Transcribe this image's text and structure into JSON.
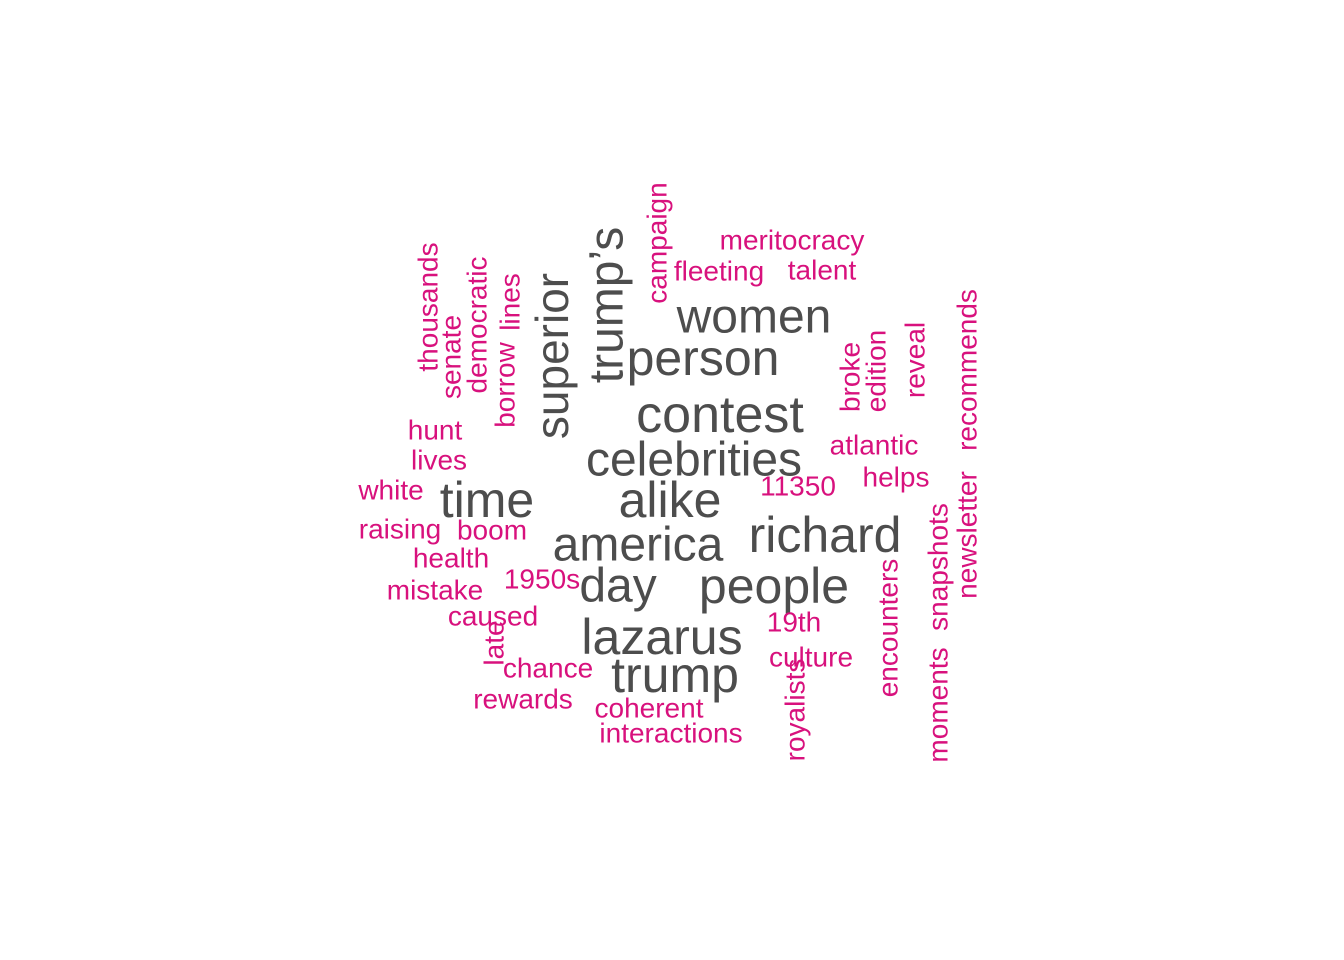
{
  "colors": {
    "primary": "#4d4d4d",
    "secondary": "#d8117d",
    "background": "#ffffff"
  },
  "words": [
    {
      "text": "trump’s",
      "group": "primary",
      "rotated": true
    },
    {
      "text": "superior",
      "group": "primary",
      "rotated": true
    },
    {
      "text": "women",
      "group": "primary",
      "rotated": false
    },
    {
      "text": "person",
      "group": "primary",
      "rotated": false
    },
    {
      "text": "contest",
      "group": "primary",
      "rotated": false
    },
    {
      "text": "celebrities",
      "group": "primary",
      "rotated": false
    },
    {
      "text": "time",
      "group": "primary",
      "rotated": false
    },
    {
      "text": "alike",
      "group": "primary",
      "rotated": false
    },
    {
      "text": "america",
      "group": "primary",
      "rotated": false
    },
    {
      "text": "richard",
      "group": "primary",
      "rotated": false
    },
    {
      "text": "day",
      "group": "primary",
      "rotated": false
    },
    {
      "text": "people",
      "group": "primary",
      "rotated": false
    },
    {
      "text": "lazarus",
      "group": "primary",
      "rotated": false
    },
    {
      "text": "trump",
      "group": "primary",
      "rotated": false
    },
    {
      "text": "campaign",
      "group": "secondary",
      "rotated": true
    },
    {
      "text": "meritocracy",
      "group": "secondary",
      "rotated": false
    },
    {
      "text": "fleeting",
      "group": "secondary",
      "rotated": false
    },
    {
      "text": "talent",
      "group": "secondary",
      "rotated": false
    },
    {
      "text": "thousands",
      "group": "secondary",
      "rotated": true
    },
    {
      "text": "senate",
      "group": "secondary",
      "rotated": true
    },
    {
      "text": "democratic",
      "group": "secondary",
      "rotated": true
    },
    {
      "text": "borrow",
      "group": "secondary",
      "rotated": true
    },
    {
      "text": "lines",
      "group": "secondary",
      "rotated": true
    },
    {
      "text": "hunt",
      "group": "secondary",
      "rotated": false
    },
    {
      "text": "lives",
      "group": "secondary",
      "rotated": false
    },
    {
      "text": "white",
      "group": "secondary",
      "rotated": false
    },
    {
      "text": "raising",
      "group": "secondary",
      "rotated": false
    },
    {
      "text": "boom",
      "group": "secondary",
      "rotated": false
    },
    {
      "text": "health",
      "group": "secondary",
      "rotated": false
    },
    {
      "text": "mistake",
      "group": "secondary",
      "rotated": false
    },
    {
      "text": "1950s",
      "group": "secondary",
      "rotated": false
    },
    {
      "text": "caused",
      "group": "secondary",
      "rotated": false
    },
    {
      "text": "late",
      "group": "secondary",
      "rotated": true
    },
    {
      "text": "chance",
      "group": "secondary",
      "rotated": false
    },
    {
      "text": "rewards",
      "group": "secondary",
      "rotated": false
    },
    {
      "text": "coherent",
      "group": "secondary",
      "rotated": false
    },
    {
      "text": "interactions",
      "group": "secondary",
      "rotated": false
    },
    {
      "text": "broke",
      "group": "secondary",
      "rotated": true
    },
    {
      "text": "edition",
      "group": "secondary",
      "rotated": true
    },
    {
      "text": "reveal",
      "group": "secondary",
      "rotated": true
    },
    {
      "text": "atlantic",
      "group": "secondary",
      "rotated": false
    },
    {
      "text": "11350",
      "group": "secondary",
      "rotated": false
    },
    {
      "text": "helps",
      "group": "secondary",
      "rotated": false
    },
    {
      "text": "19th",
      "group": "secondary",
      "rotated": false
    },
    {
      "text": "culture",
      "group": "secondary",
      "rotated": false
    },
    {
      "text": "royalists",
      "group": "secondary",
      "rotated": true
    },
    {
      "text": "encounters",
      "group": "secondary",
      "rotated": true
    },
    {
      "text": "snapshots",
      "group": "secondary",
      "rotated": true
    },
    {
      "text": "moments",
      "group": "secondary",
      "rotated": true
    },
    {
      "text": "newsletter",
      "group": "secondary",
      "rotated": true
    },
    {
      "text": "recommends",
      "group": "secondary",
      "rotated": true
    }
  ]
}
